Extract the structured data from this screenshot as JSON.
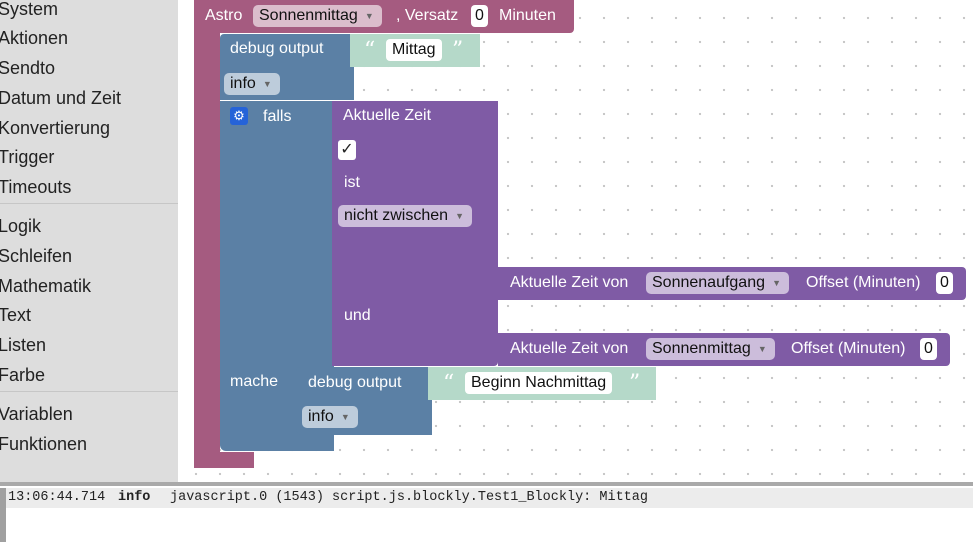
{
  "sidebar": {
    "group1": [
      "System",
      "Aktionen",
      "Sendto",
      "Datum und Zeit",
      "Konvertierung",
      "Trigger",
      "Timeouts"
    ],
    "group2": [
      "Logik",
      "Schleifen",
      "Mathematik",
      "Text",
      "Listen",
      "Farbe"
    ],
    "group3": [
      "Variablen",
      "Funktionen"
    ]
  },
  "colors": {
    "astro": "#a55b80",
    "blue": "#5b80a5",
    "purple": "#7f5ba5",
    "text_block": "#b5d9c9"
  },
  "workspace": {
    "astro": {
      "label": "Astro",
      "event": "Sonnenmittag",
      "offset_label": ", Versatz",
      "offset": "0",
      "unit": "Minuten"
    },
    "debug1": {
      "label": "debug output",
      "text": "Mittag",
      "level": "info"
    },
    "if": {
      "gear_icon": "gear-icon",
      "label": "falls",
      "do_label": "mache"
    },
    "time_check": {
      "label": "Aktuelle Zeit",
      "check": "✓",
      "is_label": "ist",
      "operator": "nicht zwischen",
      "and_label": "und"
    },
    "time1": {
      "label": "Aktuelle Zeit von",
      "event": "Sonnenaufgang",
      "offset_label": "Offset (Minuten)",
      "offset": "0"
    },
    "time2": {
      "label": "Aktuelle Zeit von",
      "event": "Sonnenmittag",
      "offset_label": "Offset (Minuten)",
      "offset": "0"
    },
    "debug2": {
      "label": "debug output",
      "text": "Beginn Nachmittag",
      "level": "info"
    }
  },
  "log": {
    "time": "13:06:44.714",
    "level": "info",
    "message": "javascript.0 (1543) script.js.blockly.Test1_Blockly: Mittag"
  }
}
